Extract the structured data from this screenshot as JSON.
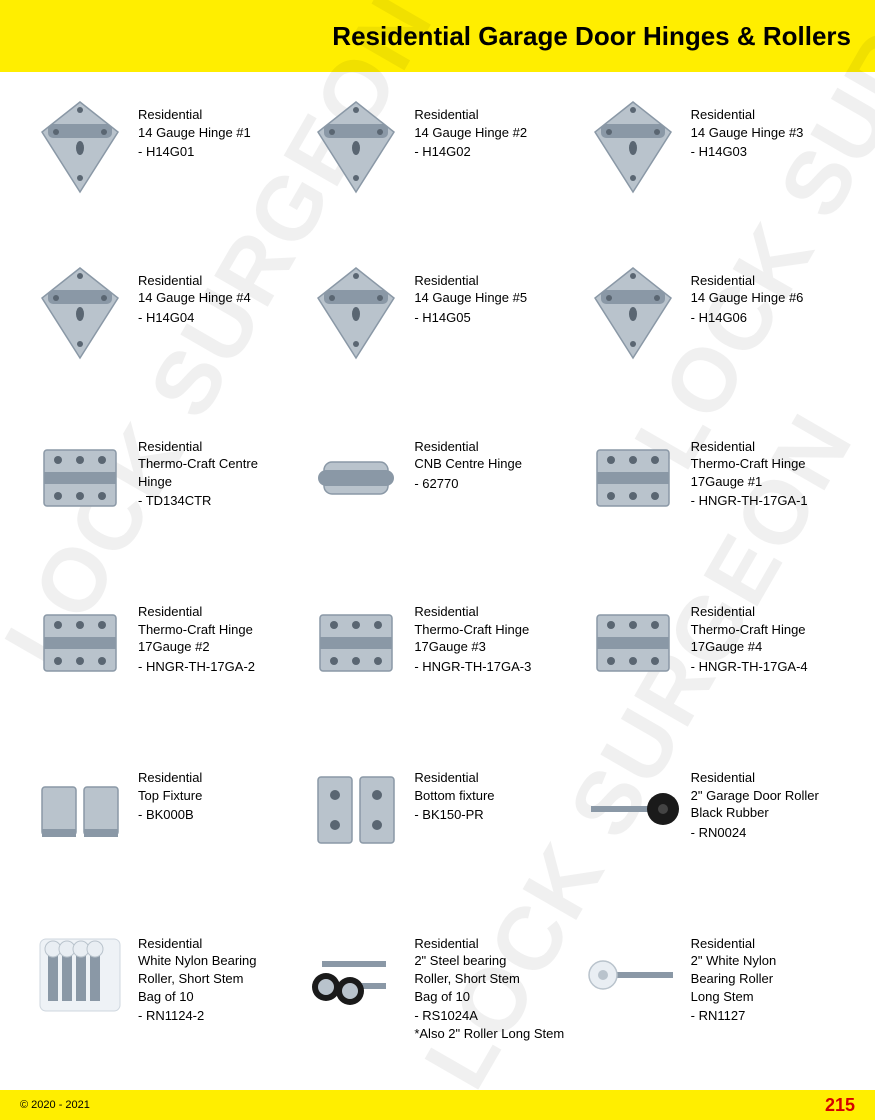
{
  "page": {
    "title": "Residential Garage Door Hinges & Rollers",
    "copyright": "© 2020 - 2021",
    "pageNumber": "215",
    "watermark": "LOCK SURGEON",
    "colors": {
      "header_bg": "#ffee00",
      "footer_bg": "#ffee00",
      "text": "#000000",
      "pageNumber": "#d40000",
      "metal": "#b9c3cc",
      "metal_dark": "#8a98a6",
      "black": "#1a1a1a",
      "white_nylon": "#e9eef3"
    }
  },
  "products": [
    {
      "line1": "Residential",
      "line2": "14 Gauge Hinge #1",
      "sku": "- H14G01",
      "shape": "triangle-hinge"
    },
    {
      "line1": "Residential",
      "line2": "14 Gauge Hinge #2",
      "sku": "- H14G02",
      "shape": "triangle-hinge"
    },
    {
      "line1": "Residential",
      "line2": "14 Gauge Hinge #3",
      "sku": "- H14G03",
      "shape": "triangle-hinge"
    },
    {
      "line1": "Residential",
      "line2": "14 Gauge Hinge #4",
      "sku": "- H14G04",
      "shape": "triangle-hinge"
    },
    {
      "line1": "Residential",
      "line2": "14 Gauge Hinge #5",
      "sku": "- H14G05",
      "shape": "triangle-hinge"
    },
    {
      "line1": "Residential",
      "line2": "14 Gauge Hinge #6",
      "sku": "- H14G06",
      "shape": "triangle-hinge"
    },
    {
      "line1": "Residential",
      "line2": "Thermo-Craft Centre",
      "line3": "Hinge",
      "sku": "- TD134CTR",
      "shape": "box-hinge"
    },
    {
      "line1": "Residential",
      "line2": "CNB Centre Hinge",
      "sku": "- 62770",
      "shape": "cnb-hinge"
    },
    {
      "line1": "Residential",
      "line2": "Thermo-Craft Hinge",
      "line3": "17Gauge #1",
      "sku": "- HNGR-TH-17GA-1",
      "shape": "box-hinge"
    },
    {
      "line1": "Residential",
      "line2": "Thermo-Craft Hinge",
      "line3": "17Gauge #2",
      "sku": "- HNGR-TH-17GA-2",
      "shape": "box-hinge"
    },
    {
      "line1": "Residential",
      "line2": "Thermo-Craft Hinge",
      "line3": "17Gauge #3",
      "sku": "- HNGR-TH-17GA-3",
      "shape": "box-hinge"
    },
    {
      "line1": "Residential",
      "line2": "Thermo-Craft Hinge",
      "line3": "17Gauge #4",
      "sku": "- HNGR-TH-17GA-4",
      "shape": "box-hinge"
    },
    {
      "line1": "Residential",
      "line2": "Top Fixture",
      "sku": "- BK000B",
      "shape": "top-fixture"
    },
    {
      "line1": "Residential",
      "line2": "Bottom fixture",
      "sku": "- BK150-PR",
      "shape": "bottom-fixture"
    },
    {
      "line1": "Residential",
      "line2": "2\" Garage Door Roller",
      "line3": "Black Rubber",
      "sku": "- RN0024",
      "shape": "roller-black"
    },
    {
      "line1": "Residential",
      "line2": "White Nylon Bearing",
      "line3": "Roller, Short Stem",
      "line4": "Bag of 10",
      "sku": "- RN1124-2",
      "shape": "bag-rollers"
    },
    {
      "line1": "Residential",
      "line2": "2\" Steel bearing",
      "line3": "Roller, Short Stem",
      "line4": "Bag of 10",
      "sku": "- RS1024A",
      "note": "*Also 2\" Roller Long Stem",
      "shape": "steel-rollers"
    },
    {
      "line1": "Residential",
      "line2": "2\" White Nylon",
      "line3": "Bearing Roller",
      "line4": "Long Stem",
      "sku": "- RN1127",
      "shape": "roller-white-long"
    }
  ]
}
